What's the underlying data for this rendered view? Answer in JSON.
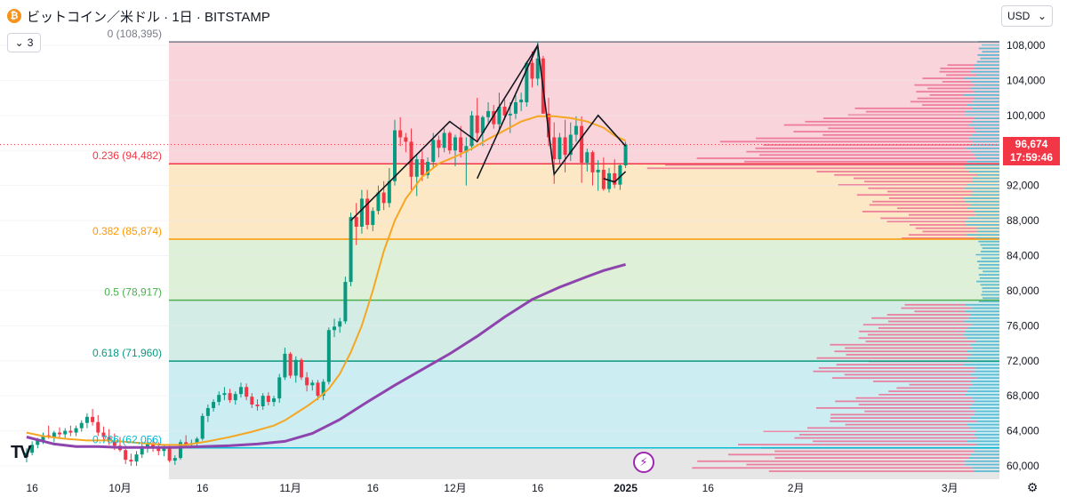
{
  "header": {
    "symbol_title": "ビットコイン／米ドル · 1日 · BITSTAMP",
    "indicator_count": "3",
    "currency": "USD",
    "logo_text": "TV"
  },
  "last_price": {
    "value": "96,674",
    "countdown": "17:59:46"
  },
  "colors": {
    "fib_zone_0": "#f9d4da",
    "fib_zone_1": "#fde8c6",
    "fib_zone_2": "#def0d8",
    "fib_zone_3": "#d4ece6",
    "fib_zone_4": "#cceef3",
    "fib_zone_5": "#e6e6e6",
    "fib_line_0": "#787b86",
    "fib_line_236": "#f23645",
    "fib_line_382": "#ff9800",
    "fib_line_5": "#4caf50",
    "fib_line_618": "#089981",
    "fib_line_786": "#00bcd4",
    "candle_up": "#089981",
    "candle_down": "#f23645",
    "ma_fast": "#f5a623",
    "ma_slow": "#8e44ad"
  },
  "chart_data": {
    "type": "candlestick",
    "ylim": [
      59000,
      109000
    ],
    "y_ticks": [
      "108,000",
      "104,000",
      "100,000",
      "96,000",
      "92,000",
      "88,000",
      "84,000",
      "80,000",
      "76,000",
      "72,000",
      "68,000",
      "64,000",
      "60,000"
    ],
    "y_tick_values": [
      108000,
      104000,
      100000,
      96000,
      92000,
      88000,
      84000,
      80000,
      76000,
      72000,
      68000,
      64000,
      60000
    ],
    "x_ticks": [
      {
        "label": "16",
        "day": -16
      },
      {
        "label": "10月",
        "day": 0
      },
      {
        "label": "16",
        "day": 15
      },
      {
        "label": "11月",
        "day": 31
      },
      {
        "label": "16",
        "day": 46
      },
      {
        "label": "12月",
        "day": 61
      },
      {
        "label": "16",
        "day": 76
      },
      {
        "label": "2025",
        "day": 92
      },
      {
        "label": "16",
        "day": 107
      },
      {
        "label": "2月",
        "day": 123
      },
      {
        "label": "3月",
        "day": 151
      }
    ],
    "fib_levels": [
      {
        "ratio": "0",
        "price": 108395,
        "label": "0 (108,395)"
      },
      {
        "ratio": "0.236",
        "price": 94482,
        "label": "0.236 (94,482)"
      },
      {
        "ratio": "0.382",
        "price": 85874,
        "label": "0.382 (85,874)"
      },
      {
        "ratio": "0.5",
        "price": 78917,
        "label": "0.5 (78,917)"
      },
      {
        "ratio": "0.618",
        "price": 71960,
        "label": "0.618 (71,960)"
      },
      {
        "ratio": "0.786",
        "price": 62056,
        "label": "0.786 (62,056)"
      }
    ],
    "last_price": 96674,
    "candles": [
      [
        -17,
        61000,
        62000,
        60400,
        61500
      ],
      [
        -16,
        61500,
        62800,
        61200,
        62400
      ],
      [
        -15,
        62400,
        63200,
        62000,
        62900
      ],
      [
        -14,
        62900,
        63800,
        62500,
        63500
      ],
      [
        -13,
        63500,
        64600,
        63100,
        63300
      ],
      [
        -12,
        63300,
        64000,
        62700,
        63800
      ],
      [
        -11,
        63800,
        64400,
        63200,
        63600
      ],
      [
        -10,
        63600,
        64300,
        63100,
        64000
      ],
      [
        -9,
        64000,
        64600,
        63400,
        63800
      ],
      [
        -8,
        63800,
        64600,
        63400,
        64300
      ],
      [
        -7,
        64300,
        65200,
        63900,
        64900
      ],
      [
        -6,
        64900,
        66000,
        64300,
        65600
      ],
      [
        -5,
        65600,
        66500,
        64600,
        65000
      ],
      [
        -4,
        65000,
        65800,
        63400,
        63800
      ],
      [
        -3,
        63800,
        64500,
        62800,
        63300
      ],
      [
        -2,
        63300,
        64200,
        62400,
        62900
      ],
      [
        -1,
        62900,
        63700,
        61800,
        62300
      ],
      [
        0,
        62300,
        63300,
        61600,
        61800
      ],
      [
        1,
        61800,
        62300,
        60200,
        60700
      ],
      [
        2,
        60700,
        61400,
        60000,
        60500
      ],
      [
        3,
        60500,
        61700,
        60000,
        61300
      ],
      [
        4,
        61300,
        62700,
        60900,
        62200
      ],
      [
        5,
        62200,
        63200,
        61500,
        62600
      ],
      [
        6,
        62600,
        63200,
        61600,
        62100
      ],
      [
        7,
        62100,
        62700,
        61200,
        61700
      ],
      [
        8,
        61700,
        62400,
        61100,
        62000
      ],
      [
        9,
        62000,
        62300,
        60400,
        60600
      ],
      [
        10,
        60600,
        61200,
        60100,
        60900
      ],
      [
        11,
        60900,
        63000,
        60700,
        62700
      ],
      [
        12,
        62700,
        63500,
        62100,
        62400
      ],
      [
        13,
        62400,
        63000,
        62000,
        62600
      ],
      [
        14,
        62600,
        63300,
        62200,
        63100
      ],
      [
        15,
        63100,
        66000,
        62900,
        65700
      ],
      [
        16,
        65700,
        67000,
        65000,
        66600
      ],
      [
        17,
        66600,
        67600,
        66200,
        67300
      ],
      [
        18,
        67300,
        68500,
        66900,
        68100
      ],
      [
        19,
        68100,
        69000,
        67500,
        68300
      ],
      [
        20,
        68300,
        68800,
        67200,
        67500
      ],
      [
        21,
        67500,
        68500,
        67000,
        68200
      ],
      [
        22,
        68200,
        69500,
        67800,
        69000
      ],
      [
        23,
        69000,
        69400,
        67500,
        67900
      ],
      [
        24,
        67900,
        68300,
        66600,
        67000
      ],
      [
        25,
        67000,
        67600,
        66300,
        66800
      ],
      [
        26,
        66800,
        68300,
        66400,
        68000
      ],
      [
        27,
        68000,
        68400,
        66900,
        67300
      ],
      [
        28,
        67300,
        68000,
        66800,
        67700
      ],
      [
        29,
        67700,
        70500,
        67200,
        70100
      ],
      [
        30,
        70100,
        73500,
        69800,
        72800
      ],
      [
        31,
        72800,
        73000,
        70000,
        70300
      ],
      [
        32,
        70300,
        72500,
        69500,
        72100
      ],
      [
        33,
        72100,
        72300,
        69800,
        70100
      ],
      [
        34,
        70100,
        70700,
        68500,
        69200
      ],
      [
        35,
        69200,
        69800,
        68600,
        69500
      ],
      [
        36,
        69500,
        69800,
        67500,
        68000
      ],
      [
        37,
        68000,
        69900,
        67500,
        69600
      ],
      [
        38,
        69600,
        75800,
        69300,
        75500
      ],
      [
        39,
        75500,
        76800,
        74700,
        75900
      ],
      [
        40,
        75900,
        76900,
        75200,
        76500
      ],
      [
        41,
        76500,
        81600,
        76200,
        81000
      ],
      [
        42,
        81000,
        88900,
        80500,
        88400
      ],
      [
        43,
        88400,
        90000,
        85200,
        87300
      ],
      [
        44,
        87300,
        91500,
        86500,
        90500
      ],
      [
        45,
        90500,
        91500,
        87000,
        87500
      ],
      [
        46,
        87500,
        89500,
        86800,
        89100
      ],
      [
        47,
        89100,
        92000,
        88700,
        91200
      ],
      [
        48,
        91200,
        92500,
        89200,
        90000
      ],
      [
        49,
        90000,
        94000,
        89500,
        92500
      ],
      [
        50,
        92500,
        99500,
        92000,
        98300
      ],
      [
        51,
        98300,
        99800,
        96500,
        97500
      ],
      [
        52,
        97500,
        98000,
        95800,
        97000
      ],
      [
        53,
        97000,
        98500,
        91500,
        93000
      ],
      [
        54,
        93000,
        95500,
        90800,
        95000
      ],
      [
        55,
        95000,
        96000,
        92500,
        93200
      ],
      [
        56,
        93200,
        95200,
        92800,
        94700
      ],
      [
        57,
        94700,
        98000,
        94000,
        97200
      ],
      [
        58,
        97200,
        97700,
        95200,
        96300
      ],
      [
        59,
        96300,
        98500,
        95800,
        98000
      ],
      [
        60,
        98000,
        98200,
        95600,
        96000
      ],
      [
        61,
        96000,
        97800,
        94200,
        97500
      ],
      [
        62,
        97500,
        98800,
        95200,
        95800
      ],
      [
        63,
        95800,
        97500,
        92000,
        96500
      ],
      [
        64,
        96500,
        100500,
        96000,
        100000
      ],
      [
        65,
        100000,
        102000,
        97000,
        98000
      ],
      [
        66,
        98000,
        100000,
        96500,
        99800
      ],
      [
        67,
        99800,
        101500,
        99200,
        100500
      ],
      [
        68,
        100500,
        101200,
        98500,
        99000
      ],
      [
        69,
        99000,
        102600,
        98400,
        101000
      ],
      [
        70,
        101000,
        101800,
        99500,
        100000
      ],
      [
        71,
        100000,
        101500,
        98000,
        100200
      ],
      [
        72,
        100200,
        102300,
        99600,
        101500
      ],
      [
        73,
        101500,
        102600,
        100500,
        101800
      ],
      [
        74,
        101500,
        106200,
        101000,
        106000
      ],
      [
        75,
        106000,
        107300,
        103200,
        104200
      ],
      [
        76,
        104200,
        108395,
        103400,
        106500
      ],
      [
        77,
        106500,
        106800,
        100500,
        100200
      ],
      [
        78,
        100200,
        102000,
        96500,
        97500
      ],
      [
        79,
        97500,
        99200,
        92200,
        95000
      ],
      [
        80,
        95000,
        98000,
        94500,
        97500
      ],
      [
        81,
        97500,
        99500,
        93500,
        95500
      ],
      [
        82,
        95500,
        99200,
        94800,
        97800
      ],
      [
        83,
        97800,
        99900,
        97000,
        98800
      ],
      [
        84,
        98800,
        99900,
        92300,
        94600
      ],
      [
        85,
        94600,
        96200,
        93600,
        95800
      ],
      [
        86,
        95800,
        96000,
        92000,
        93500
      ],
      [
        87,
        93500,
        94900,
        91400,
        93800
      ],
      [
        88,
        93800,
        95200,
        91400,
        91600
      ],
      [
        89,
        91600,
        94000,
        91200,
        93400
      ],
      [
        90,
        93400,
        95000,
        91700,
        92100
      ],
      [
        91,
        92100,
        94500,
        91500,
        94300
      ],
      [
        92,
        94300,
        97000,
        94000,
        96700
      ]
    ],
    "ma_fast": [
      [
        -17,
        63800
      ],
      [
        -14,
        63400
      ],
      [
        -10,
        63100
      ],
      [
        -6,
        62900
      ],
      [
        -2,
        62900
      ],
      [
        0,
        62800
      ],
      [
        4,
        62600
      ],
      [
        8,
        62400
      ],
      [
        12,
        62400
      ],
      [
        16,
        62800
      ],
      [
        20,
        63300
      ],
      [
        24,
        63900
      ],
      [
        28,
        64600
      ],
      [
        30,
        65200
      ],
      [
        32,
        66000
      ],
      [
        34,
        66800
      ],
      [
        36,
        67700
      ],
      [
        38,
        68800
      ],
      [
        40,
        70500
      ],
      [
        42,
        73000
      ],
      [
        44,
        76000
      ],
      [
        46,
        80000
      ],
      [
        48,
        84500
      ],
      [
        50,
        88000
      ],
      [
        52,
        90500
      ],
      [
        55,
        93000
      ],
      [
        58,
        94500
      ],
      [
        61,
        95300
      ],
      [
        64,
        96200
      ],
      [
        67,
        97300
      ],
      [
        70,
        98300
      ],
      [
        73,
        99300
      ],
      [
        76,
        99900
      ],
      [
        79,
        99900
      ],
      [
        82,
        99700
      ],
      [
        85,
        99300
      ],
      [
        88,
        98600
      ],
      [
        90,
        97700
      ],
      [
        92,
        97100
      ]
    ],
    "ma_slow": [
      [
        -17,
        63300
      ],
      [
        -12,
        62500
      ],
      [
        -8,
        62200
      ],
      [
        -4,
        62200
      ],
      [
        0,
        62100
      ],
      [
        5,
        62100
      ],
      [
        10,
        62100
      ],
      [
        15,
        62200
      ],
      [
        20,
        62300
      ],
      [
        25,
        62500
      ],
      [
        30,
        62800
      ],
      [
        35,
        63700
      ],
      [
        40,
        65300
      ],
      [
        45,
        67300
      ],
      [
        50,
        69200
      ],
      [
        55,
        71000
      ],
      [
        60,
        72800
      ],
      [
        65,
        74800
      ],
      [
        70,
        77000
      ],
      [
        75,
        79000
      ],
      [
        80,
        80400
      ],
      [
        85,
        81600
      ],
      [
        88,
        82300
      ],
      [
        92,
        83000
      ]
    ],
    "trend_lines": [
      [
        [
          42,
          88000
        ],
        [
          60,
          99300
        ],
        [
          65,
          97000
        ],
        [
          76,
          108000
        ]
      ],
      [
        [
          65,
          92800
        ],
        [
          76,
          108000
        ],
        [
          79,
          93300
        ],
        [
          87,
          100000
        ],
        [
          92,
          96500
        ]
      ],
      [
        [
          88,
          92800
        ],
        [
          90,
          92400
        ],
        [
          92,
          93600
        ]
      ]
    ]
  }
}
